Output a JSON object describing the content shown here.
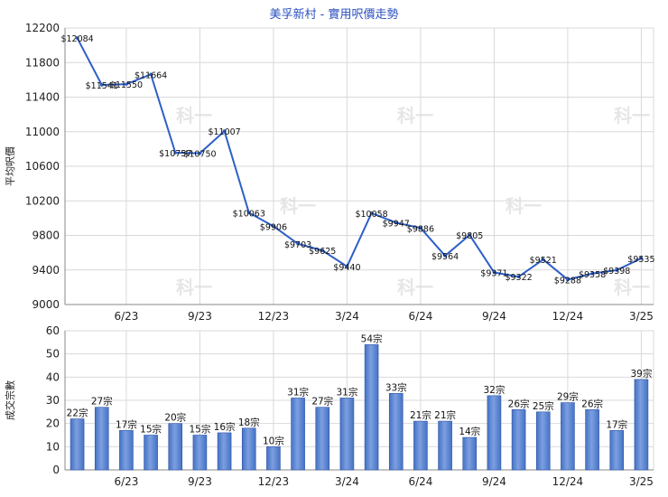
{
  "title": "美孚新村 - 實用呎價走勢",
  "watermark": "科一",
  "colors": {
    "line": "#2d5fc8",
    "bar": "#4472c4",
    "bar_light": "#7d9fe0",
    "grid": "#d9d9d9",
    "title": "#2a4fbf"
  },
  "chart_data": [
    {
      "type": "line",
      "ylabel": "平均呎價",
      "ylim": [
        9000,
        12200
      ],
      "yticks": [
        9000,
        9400,
        9800,
        10200,
        10600,
        11000,
        11400,
        11800,
        12200
      ],
      "xticks": [
        "6/23",
        "9/23",
        "12/23",
        "3/24",
        "6/24",
        "9/24",
        "12/24",
        "3/25"
      ],
      "values": [
        12084,
        11541,
        11550,
        11664,
        10757,
        10750,
        11007,
        10063,
        9906,
        9703,
        9625,
        9440,
        10058,
        9947,
        9886,
        9564,
        9805,
        9371,
        9322,
        9521,
        9288,
        9358,
        9398,
        9535
      ],
      "labels": [
        "$12084",
        "$11541",
        "$11550",
        "$11664",
        "$10757",
        "$10750",
        "$11007",
        "$10063",
        "$9906",
        "$9703",
        "$9625",
        "$9440",
        "$10058",
        "$9947",
        "$9886",
        "$9564",
        "$9805",
        "$9371",
        "$9322",
        "$9521",
        "$9288",
        "$9358",
        "$9398",
        "$9535"
      ],
      "grid": true
    },
    {
      "type": "bar",
      "ylabel": "成交宗數",
      "ylim": [
        0,
        60
      ],
      "yticks": [
        0,
        10,
        20,
        30,
        40,
        50,
        60
      ],
      "xticks": [
        "6/23",
        "9/23",
        "12/23",
        "3/24",
        "6/24",
        "9/24",
        "12/24",
        "3/25"
      ],
      "values": [
        22,
        27,
        17,
        15,
        20,
        15,
        16,
        18,
        10,
        31,
        27,
        31,
        54,
        33,
        21,
        21,
        14,
        32,
        26,
        25,
        29,
        26,
        17,
        39
      ],
      "labels": [
        "22宗",
        "27宗",
        "17宗",
        "15宗",
        "20宗",
        "15宗",
        "16宗",
        "18宗",
        "10宗",
        "31宗",
        "27宗",
        "31宗",
        "54宗",
        "33宗",
        "21宗",
        "21宗",
        "14宗",
        "32宗",
        "26宗",
        "25宗",
        "29宗",
        "26宗",
        "17宗",
        "39宗"
      ],
      "grid": true
    }
  ]
}
